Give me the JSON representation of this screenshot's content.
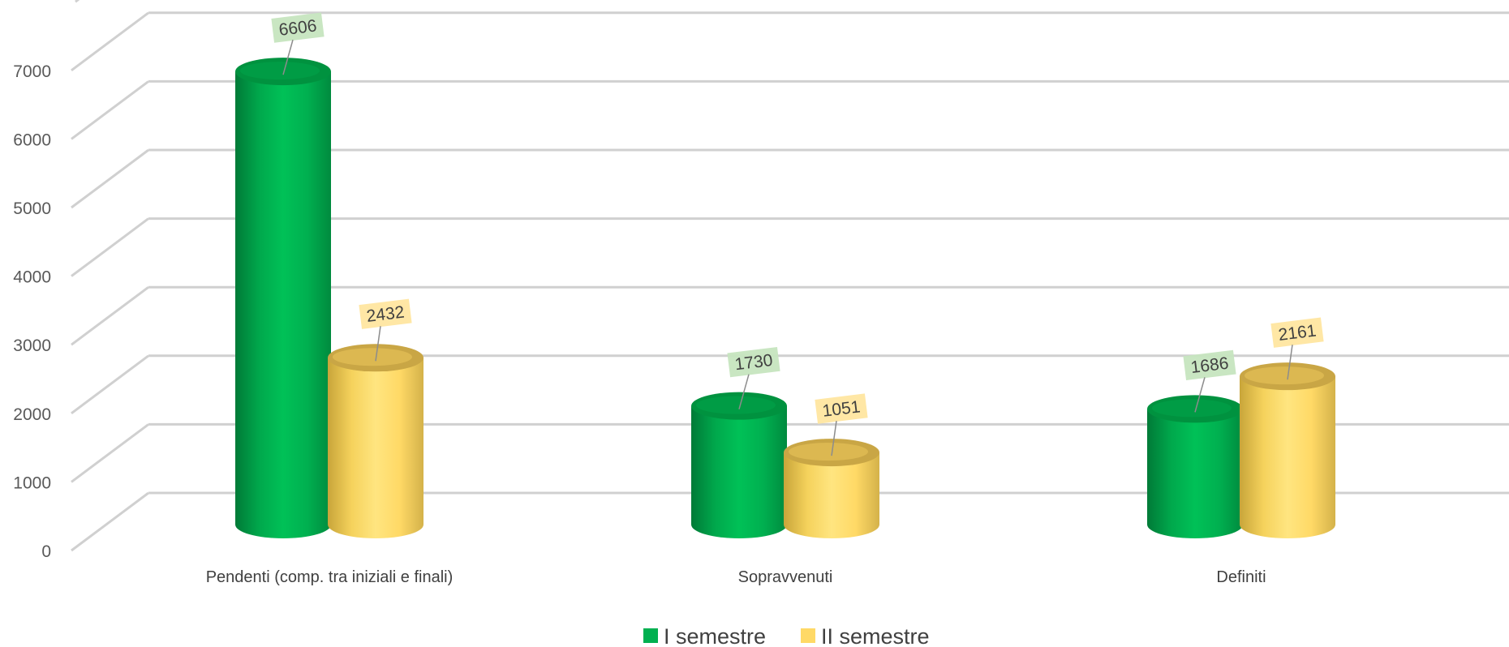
{
  "chart_data": {
    "type": "bar",
    "style": "3d-cylinder",
    "title": "",
    "xlabel": "",
    "ylabel": "",
    "categories": [
      "Pendenti (comp. tra iniziali e finali)",
      "Sopravvenuti",
      "Definiti"
    ],
    "series": [
      {
        "name": "I semestre",
        "color": "#00b050",
        "values": [
          6606,
          1730,
          1686
        ]
      },
      {
        "name": "II semestre",
        "color": "#ffd966",
        "values": [
          2432,
          1051,
          2161
        ]
      }
    ],
    "ylim": [
      0,
      7000
    ],
    "yticks": [
      0,
      1000,
      2000,
      3000,
      4000,
      5000,
      6000,
      7000
    ],
    "grid": true,
    "legend": "bottom",
    "data_labels": true
  }
}
